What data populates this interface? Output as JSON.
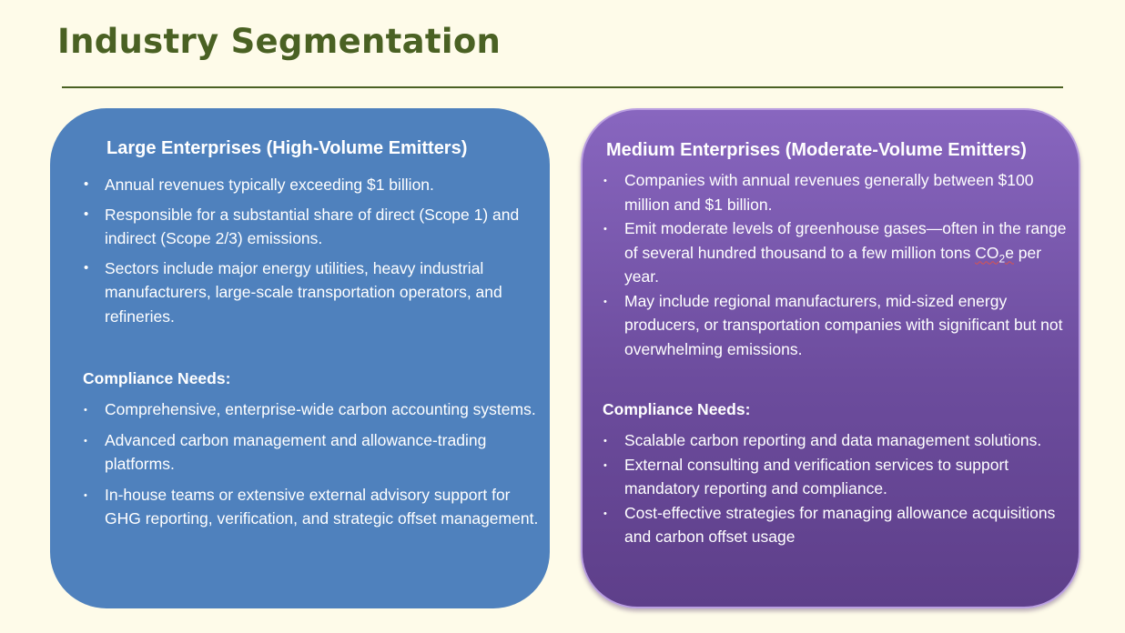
{
  "page": {
    "title": "Industry Segmentation"
  },
  "large": {
    "heading": "Large Enterprises (High-Volume Emitters)",
    "bullets": [
      "Annual revenues typically exceeding $1 billion.",
      "Responsible for a substantial share of direct (Scope 1) and indirect (Scope 2/3) emissions.",
      "Sectors include major energy utilities, heavy industrial manufacturers, large-scale transportation operators, and refineries."
    ],
    "compliance_label": "Compliance Needs:",
    "compliance": [
      "Comprehensive, enterprise-wide carbon accounting systems.",
      "Advanced carbon management and allowance-trading platforms.",
      "In-house teams or extensive external advisory support for GHG reporting, verification, and strategic offset management."
    ]
  },
  "medium": {
    "heading": "Medium Enterprises (Moderate-Volume Emitters)",
    "bullets": [
      "Companies with annual revenues generally between $100 million and $1 billion.",
      "Emit moderate levels of greenhouse gases—often in the range of several hundred thousand to a few million tons",
      "May include regional manufacturers, mid-sized energy producers, or transportation companies with significant but not overwhelming emissions."
    ],
    "co2_prefix": "CO",
    "co2_sub": "2",
    "co2_suffix": "e",
    "co2_tail": " per year.",
    "compliance_label": "Compliance Needs:",
    "compliance": [
      "Scalable carbon reporting and data management solutions.",
      "External consulting and verification services to support mandatory reporting and compliance.",
      "Cost-effective strategies for managing allowance acquisitions and carbon offset usage"
    ]
  },
  "bullet_char": "•"
}
